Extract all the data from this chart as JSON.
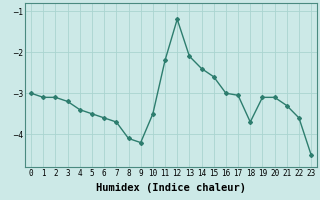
{
  "x": [
    0,
    1,
    2,
    3,
    4,
    5,
    6,
    7,
    8,
    9,
    10,
    11,
    12,
    13,
    14,
    15,
    16,
    17,
    18,
    19,
    20,
    21,
    22,
    23
  ],
  "y": [
    -3.0,
    -3.1,
    -3.1,
    -3.2,
    -3.4,
    -3.5,
    -3.6,
    -3.7,
    -4.1,
    -4.2,
    -3.5,
    -2.2,
    -1.2,
    -2.1,
    -2.4,
    -2.6,
    -3.0,
    -3.05,
    -3.7,
    -3.1,
    -3.1,
    -3.3,
    -3.6,
    -4.5
  ],
  "line_color": "#2d7d6e",
  "marker": "D",
  "marker_size": 2,
  "linewidth": 1.0,
  "bg_color": "#cce9e7",
  "grid_color": "#aad4d0",
  "xlabel": "Humidex (Indice chaleur)",
  "xlim": [
    -0.5,
    23.5
  ],
  "ylim": [
    -4.8,
    -0.8
  ],
  "yticks": [
    -4,
    -3,
    -2,
    -1
  ],
  "xtick_labels": [
    "0",
    "1",
    "2",
    "3",
    "4",
    "5",
    "6",
    "7",
    "8",
    "9",
    "10",
    "11",
    "12",
    "13",
    "14",
    "15",
    "16",
    "17",
    "18",
    "19",
    "20",
    "21",
    "22",
    "23"
  ],
  "tick_fontsize": 5.5,
  "xlabel_fontsize": 7.5,
  "spine_color": "#4a8a80"
}
